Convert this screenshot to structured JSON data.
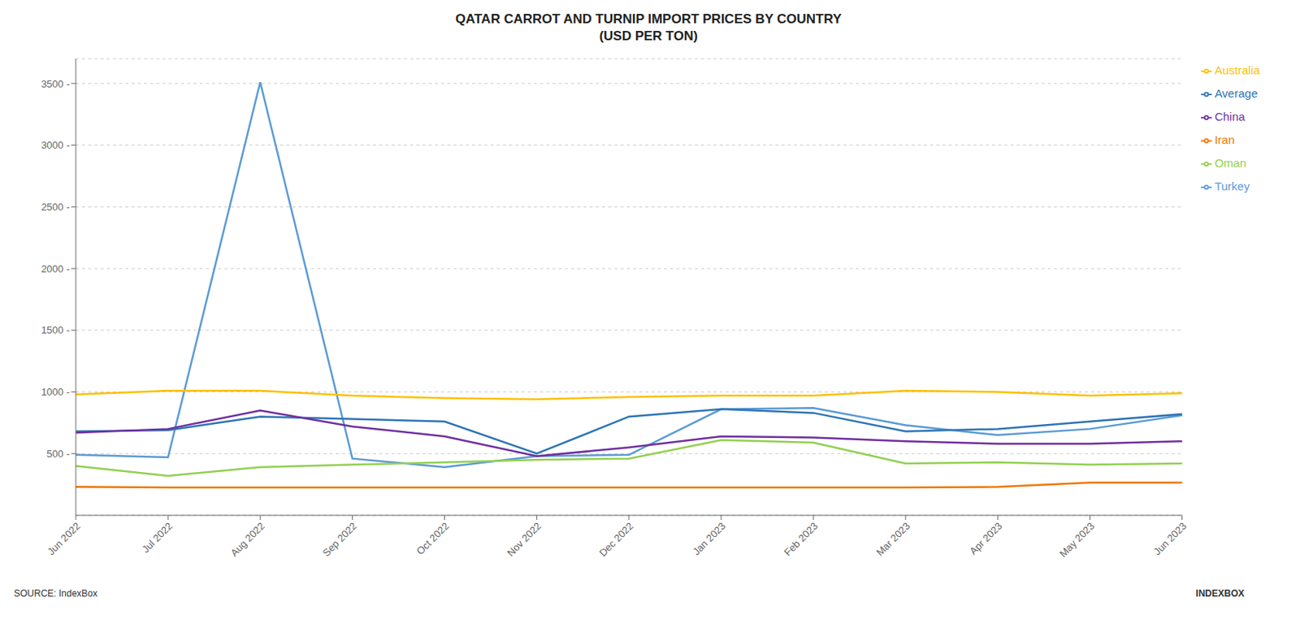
{
  "chart_data": {
    "type": "line",
    "title": "QATAR CARROT AND TURNIP IMPORT PRICES BY COUNTRY\n(USD PER TON)",
    "categories": [
      "Jun 2022",
      "Jul 2022",
      "Aug 2022",
      "Sep 2022",
      "Oct 2022",
      "Nov 2022",
      "Dec 2022",
      "Jan 2023",
      "Feb 2023",
      "Mar 2023",
      "Apr 2023",
      "May 2023",
      "Jun 2023"
    ],
    "series": [
      {
        "name": "Turkey",
        "color": "#5B9BD5",
        "values": [
          490,
          470,
          3510,
          460,
          390,
          480,
          490,
          860,
          870,
          730,
          650,
          700,
          810
        ]
      },
      {
        "name": "Australia",
        "color": "#FFC000",
        "values": [
          980,
          1010,
          1010,
          970,
          950,
          940,
          960,
          970,
          970,
          1010,
          1000,
          970,
          990
        ]
      },
      {
        "name": "Iran",
        "color": "#F07800",
        "values": [
          230,
          225,
          225,
          225,
          225,
          225,
          225,
          225,
          225,
          225,
          230,
          265,
          265
        ]
      },
      {
        "name": "Oman",
        "color": "#92D050",
        "values": [
          400,
          320,
          390,
          410,
          430,
          450,
          460,
          610,
          590,
          420,
          430,
          410,
          420
        ]
      },
      {
        "name": "Average",
        "color": "#2E75B6",
        "values": [
          680,
          690,
          800,
          780,
          760,
          500,
          800,
          860,
          830,
          680,
          700,
          760,
          820
        ]
      },
      {
        "name": "China",
        "color": "#7030A0",
        "values": [
          670,
          700,
          850,
          720,
          640,
          480,
          550,
          640,
          630,
          600,
          580,
          580,
          600
        ]
      }
    ],
    "ylim": [
      0,
      3700
    ],
    "yticks": [
      {
        "value": 500,
        "label": "500 -"
      },
      {
        "value": 1000,
        "label": "1000 -"
      },
      {
        "value": 1500,
        "label": "1500 -"
      },
      {
        "value": 2000,
        "label": "2000 -"
      },
      {
        "value": 2500,
        "label": "2500 -"
      },
      {
        "value": 3000,
        "label": "3000 -"
      },
      {
        "value": 3500,
        "label": "3500 -"
      }
    ],
    "grid": true,
    "legend": "right",
    "annotations": [
      "SOURCE: IndexBox",
      "INDEXBOX"
    ]
  }
}
